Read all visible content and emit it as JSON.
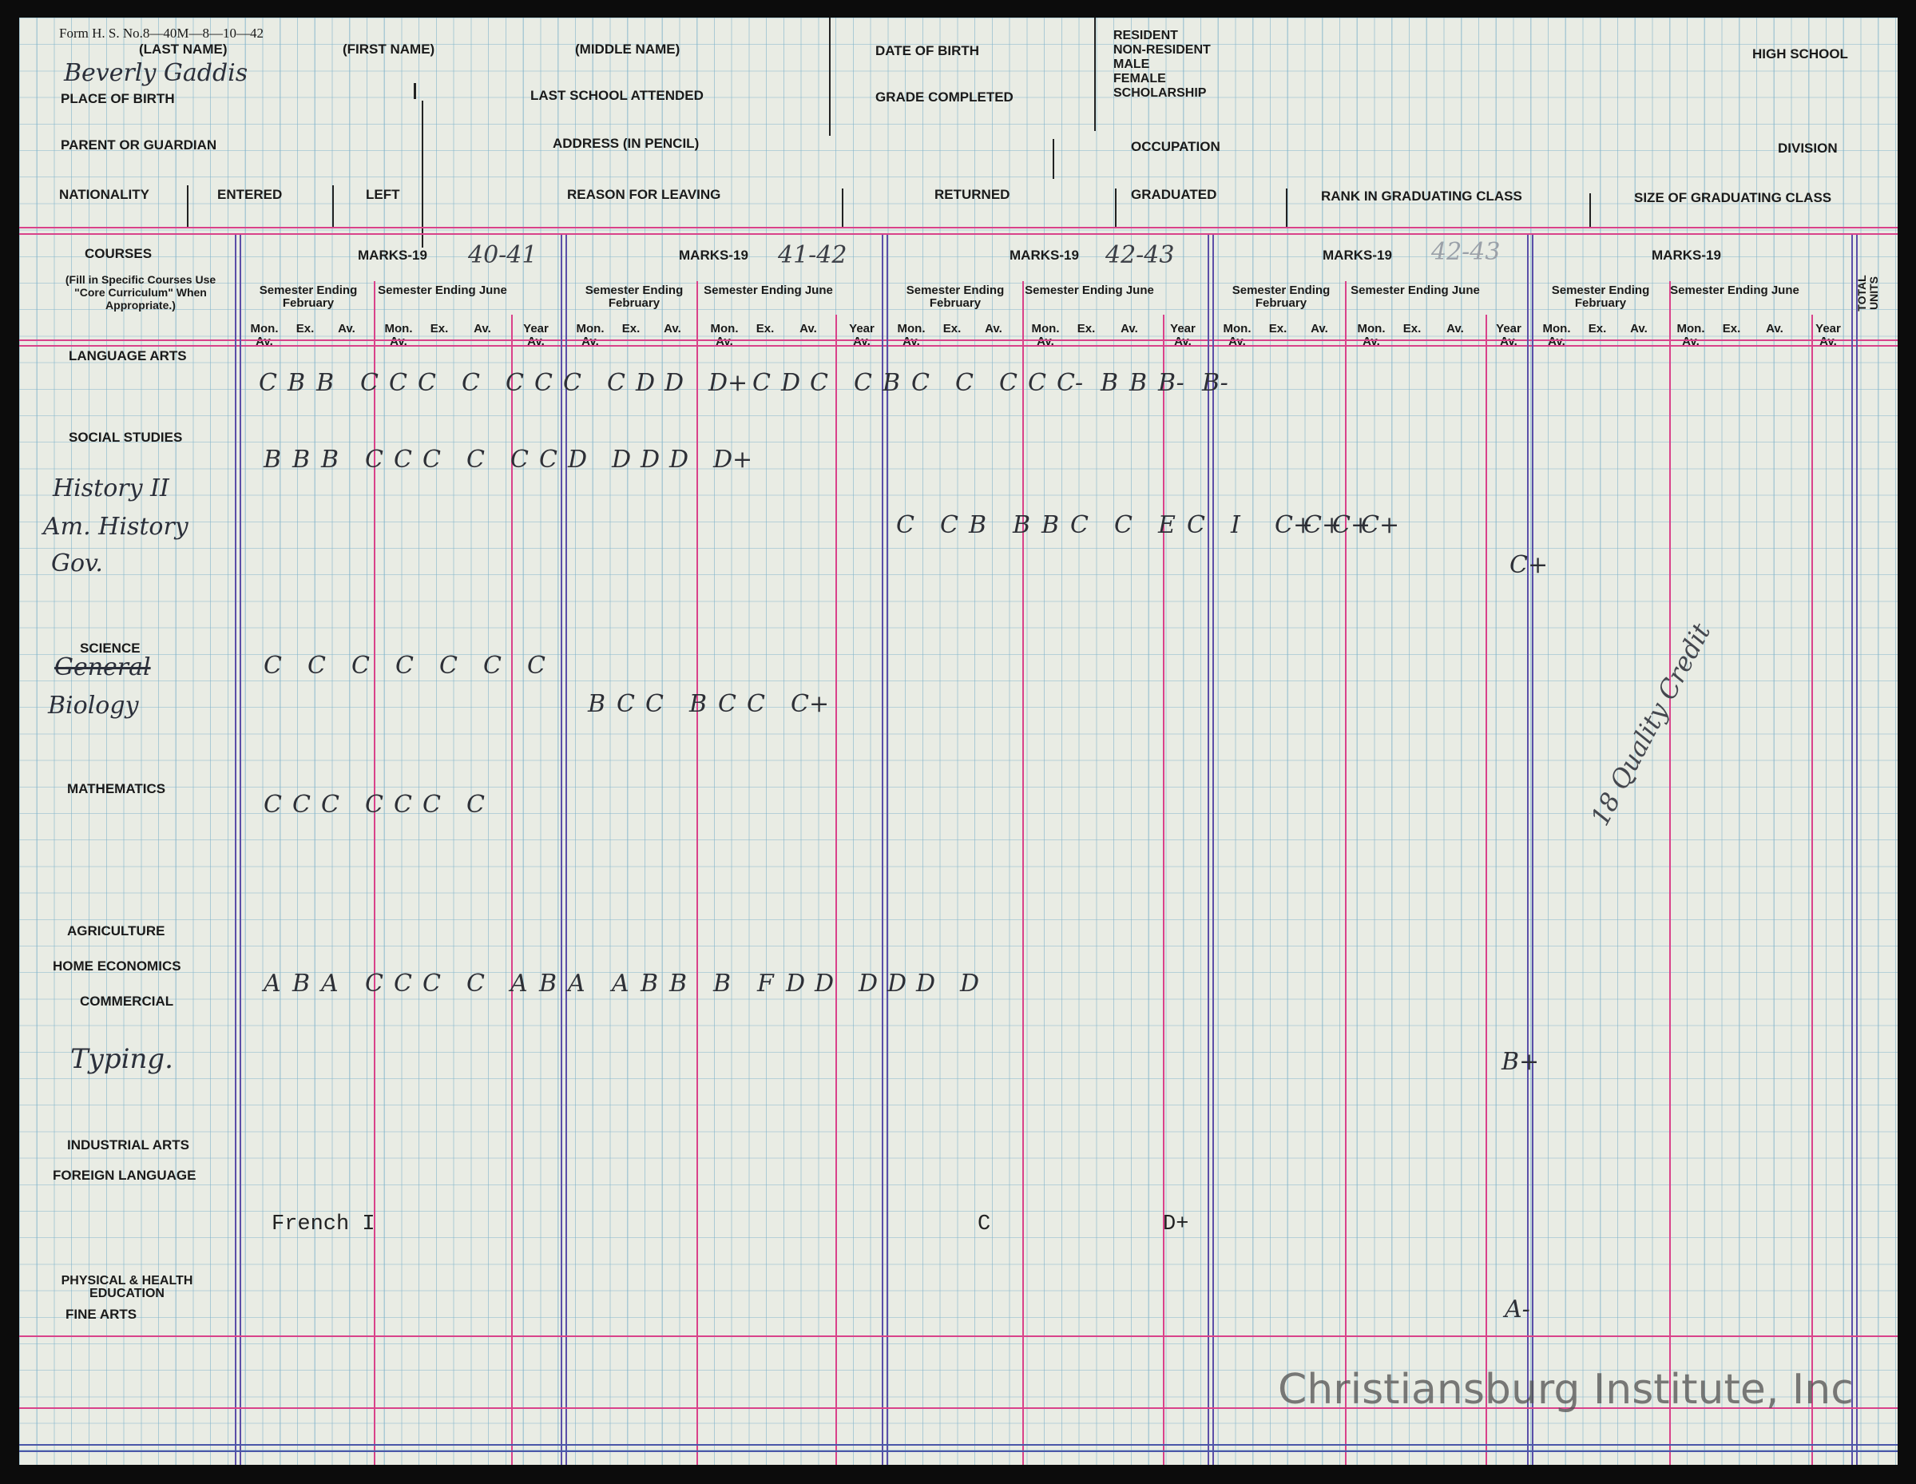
{
  "form_number": "Form H. S. No.8—40M—8—10—42",
  "header": {
    "last_name": "(LAST NAME)",
    "first_name": "(FIRST NAME)",
    "middle_name": "(MIDDLE NAME)",
    "date_of_birth": "DATE OF BIRTH",
    "status_options": [
      "RESIDENT",
      "NON-RESIDENT",
      "MALE",
      "FEMALE",
      "SCHOLARSHIP"
    ],
    "high_school": "HIGH SCHOOL",
    "place_of_birth": "PLACE OF BIRTH",
    "last_school": "LAST SCHOOL ATTENDED",
    "grade_completed": "GRADE COMPLETED",
    "parent": "PARENT OR GUARDIAN",
    "address": "ADDRESS (IN PENCIL)",
    "occupation": "OCCUPATION",
    "division": "DIVISION",
    "nationality": "NATIONALITY",
    "entered": "ENTERED",
    "left": "LEFT",
    "reason_leaving": "REASON FOR LEAVING",
    "returned": "RETURNED",
    "graduated": "GRADUATED",
    "rank": "RANK IN GRADUATING CLASS",
    "size": "SIZE OF GRADUATING CLASS",
    "student_name": "Beverly Gaddis"
  },
  "grid": {
    "courses_title": "COURSES",
    "courses_note": "(Fill in Specific Courses Use \"Core Curriculum\" When Appropriate.)",
    "marks_label": "MARKS-19",
    "years": [
      "40-41",
      "41-42",
      "42-43",
      "42-43",
      ""
    ],
    "sem_feb": "Semester Ending February",
    "sem_june": "Semester Ending June",
    "col_mon": "Mon. Av.",
    "col_ex": "Ex.",
    "col_av": "Av.",
    "col_year": "Year Av.",
    "total_units": "TOTAL UNITS"
  },
  "subjects": {
    "language_arts": "LANGUAGE ARTS",
    "social_studies": "SOCIAL STUDIES",
    "science": "SCIENCE",
    "mathematics": "MATHEMATICS",
    "agriculture": "AGRICULTURE",
    "home_economics": "HOME ECONOMICS",
    "commercial": "COMMERCIAL",
    "industrial_arts": "INDUSTRIAL ARTS",
    "foreign_language": "FOREIGN LANGUAGE",
    "physical_health": "PHYSICAL & HEALTH EDUCATION",
    "fine_arts": "FINE ARTS"
  },
  "handwritten_courses": {
    "history2": "History II",
    "am_history": "Am. History",
    "gov": "Gov.",
    "general": "General",
    "biology": "Biology",
    "typing": "Typing.",
    "french": "French I"
  },
  "grades": {
    "language_arts": [
      "C",
      "B",
      "B",
      "C",
      "C",
      "C",
      "C",
      "C",
      "C",
      "C",
      "C",
      "D",
      "D",
      "D+",
      "C",
      "D",
      "C",
      "C",
      "B",
      "C",
      "C",
      "C",
      "C",
      "C-",
      "B",
      "B",
      "B-",
      "B-"
    ],
    "social_studies": [
      "B",
      "B",
      "B",
      "C",
      "C",
      "C",
      "C",
      "C",
      "C",
      "D",
      "D",
      "D",
      "D",
      "D+"
    ],
    "history_row": [
      "C",
      "C",
      "B",
      "B",
      "B",
      "C",
      "C",
      "E",
      "C",
      "I",
      "C+",
      "C+",
      "C+",
      "C+"
    ],
    "gov_row": [
      "C+"
    ],
    "general_science": [
      "C",
      "C",
      "C",
      "C",
      "C",
      "C",
      "C"
    ],
    "biology": [
      "B",
      "C",
      "C",
      "B",
      "C",
      "C",
      "C+"
    ],
    "mathematics": [
      "C",
      "C",
      "C",
      "C",
      "C",
      "C",
      "C"
    ],
    "home_economics": [
      "A",
      "B",
      "A",
      "C",
      "C",
      "C",
      "C",
      "A",
      "B",
      "A",
      "A",
      "B",
      "B",
      "B",
      "F",
      "D",
      "D",
      "D",
      "D",
      "D",
      "D"
    ],
    "typing": [
      "B+"
    ],
    "french": [
      "C",
      "D+"
    ],
    "fine_arts": [
      "A-"
    ]
  },
  "margin_note": "18 Quality Credit",
  "watermark": "Christiansburg Institute, Inc"
}
